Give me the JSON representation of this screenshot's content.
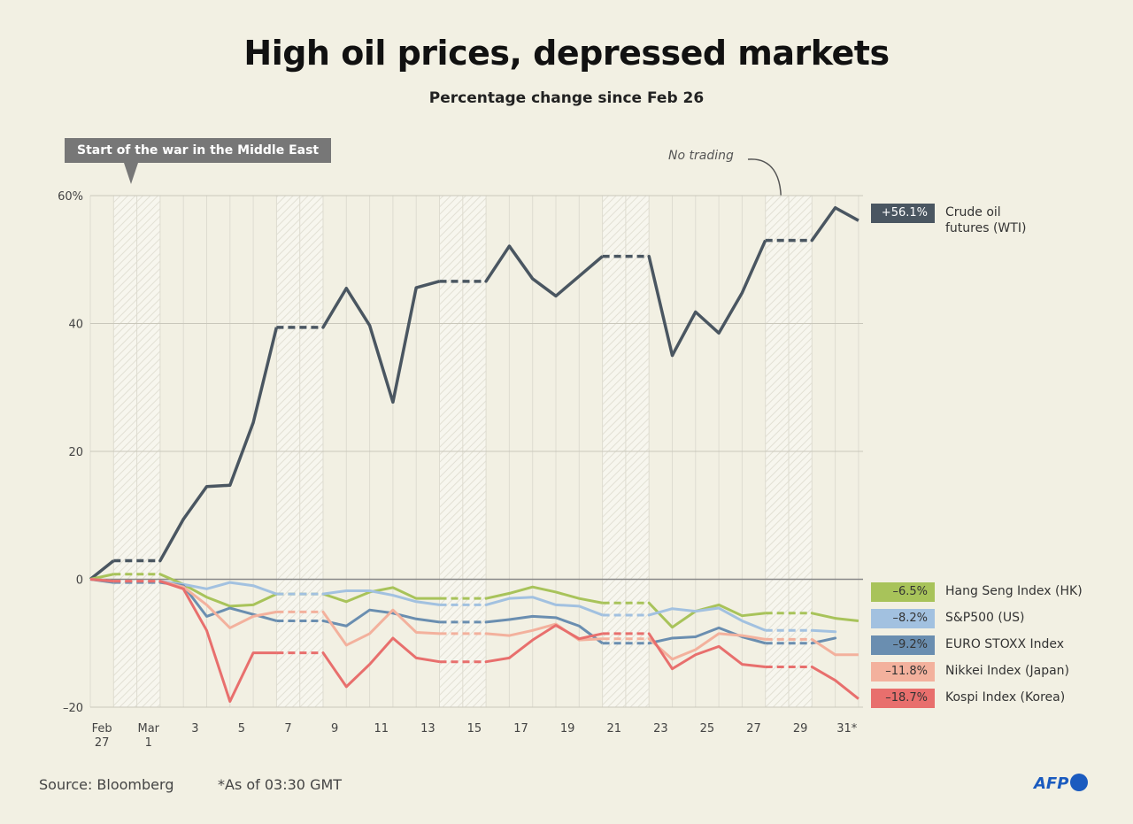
{
  "chart_data": {
    "type": "line",
    "title": "High oil prices, depressed markets",
    "subtitle": "Percentage change since Feb 26",
    "annotations": [
      "Start of the war in the Middle East",
      "No trading"
    ],
    "source": "Source: Bloomberg",
    "note": "*As of 03:30 GMT",
    "logo": "AFP",
    "categories": [
      null,
      "Feb 27",
      null,
      "Mar 1",
      null,
      "3",
      null,
      "5",
      null,
      "7",
      null,
      "9",
      null,
      "11",
      null,
      "13",
      null,
      "15",
      null,
      "17",
      null,
      "19",
      null,
      "21",
      null,
      "23",
      null,
      "25",
      null,
      "27",
      null,
      "29",
      null,
      "31*"
    ],
    "ylim": [
      -20,
      60
    ],
    "yticks": [
      {
        "value": -20,
        "label": "–20"
      },
      0,
      20,
      40,
      {
        "value": 60,
        "label": "60%"
      }
    ],
    "grid": true,
    "series": [
      {
        "name": "Crude oil futures (WTI)",
        "color": "#4a5661",
        "end_label": "+56.1%",
        "values": [
          0,
          2.9,
          null,
          null,
          9.4,
          14.5,
          14.7,
          24.5,
          39.4,
          null,
          null,
          45.5,
          39.7,
          27.7,
          45.6,
          46.6,
          null,
          null,
          52.1,
          47,
          44.3,
          47.4,
          50.5,
          null,
          null,
          35,
          41.8,
          38.5,
          44.8,
          53,
          null,
          null,
          58.1,
          56.1
        ]
      },
      {
        "name": "Hang Seng Index (HK)",
        "color": "#a8c35a",
        "end_label": "–6.5%",
        "values": [
          0,
          0.8,
          null,
          null,
          -0.8,
          -2.8,
          -4.2,
          -4,
          -2.3,
          null,
          null,
          -3.5,
          -2,
          -1.3,
          -3,
          -3,
          null,
          null,
          -2.2,
          -1.2,
          -2,
          -3,
          -3.7,
          null,
          null,
          -7.5,
          -5,
          -4,
          -5.7,
          -5.3,
          null,
          null,
          -6.1,
          -6.5
        ]
      },
      {
        "name": "S&P500 (US)",
        "color": "#a2c1e0",
        "end_label": "–8.2%",
        "values": [
          0,
          -0.3,
          null,
          null,
          -0.8,
          -1.5,
          -0.5,
          -1,
          -2.3,
          null,
          null,
          -1.8,
          -1.8,
          -2.5,
          -3.5,
          -4,
          null,
          null,
          -3,
          -2.8,
          -4,
          -4.2,
          -5.6,
          null,
          null,
          -4.6,
          -5,
          -4.5,
          -6.5,
          -8,
          null,
          null,
          -8.2,
          null
        ]
      },
      {
        "name": "EURO STOXX Index",
        "color": "#6a8eb0",
        "end_label": "–9.2%",
        "values": [
          0,
          -0.5,
          null,
          null,
          -1,
          -5.8,
          -4.5,
          -5.5,
          -6.5,
          null,
          null,
          -7.3,
          -4.8,
          -5.3,
          -6.2,
          -6.7,
          null,
          null,
          -6.3,
          -5.8,
          -6,
          -7.3,
          -10,
          null,
          null,
          -9.2,
          -9,
          -7.6,
          -9,
          -10,
          null,
          null,
          -9.2,
          null
        ]
      },
      {
        "name": "Nikkei Index (Japan)",
        "color": "#f3b19d",
        "end_label": "–11.8%",
        "values": [
          0,
          -0.3,
          null,
          null,
          -1.2,
          -4,
          -7.6,
          -5.8,
          -5.1,
          null,
          null,
          -10.3,
          -8.5,
          -4.8,
          -8.3,
          -8.5,
          null,
          null,
          -8.8,
          -8,
          -7,
          -9.5,
          -9.3,
          null,
          null,
          -12.5,
          -11,
          -8.5,
          -8.8,
          -9.4,
          null,
          null,
          -11.8,
          -11.8
        ]
      },
      {
        "name": "Kospi Index (Korea)",
        "color": "#e86f6d",
        "end_label": "–18.7%",
        "values": [
          0,
          -0.3,
          null,
          null,
          -1.5,
          -8,
          -19.1,
          -11.5,
          -11.5,
          null,
          null,
          -16.8,
          -13.3,
          -9.2,
          -12.3,
          -12.9,
          null,
          null,
          -12.3,
          -9.5,
          -7.2,
          -9.3,
          -8.5,
          null,
          null,
          -14,
          -11.8,
          -10.5,
          -13.3,
          -13.7,
          null,
          null,
          -15.8,
          -18.7
        ]
      }
    ]
  }
}
